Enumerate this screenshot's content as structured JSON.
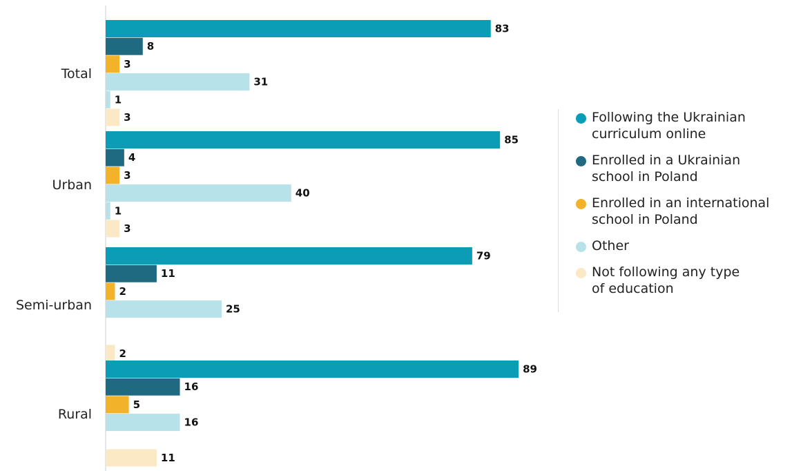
{
  "chart_data": {
    "type": "bar",
    "orientation": "horizontal",
    "categories": [
      "Total",
      "Urban",
      "Semi-urban",
      "Rural"
    ],
    "series": [
      {
        "name": "Following the Ukrainian curriculum online",
        "color": "#0a9db5",
        "values": [
          83,
          85,
          79,
          89
        ]
      },
      {
        "name": "Enrolled in a Ukrainian school in Poland",
        "color": "#1f6a80",
        "values": [
          8,
          4,
          11,
          16
        ]
      },
      {
        "name": "Enrolled in an international school in Poland",
        "color": "#f2b229",
        "values": [
          3,
          3,
          2,
          5
        ]
      },
      {
        "name": "Other",
        "color": "#b7e2e9",
        "values": [
          31,
          40,
          25,
          16
        ]
      },
      {
        "name": "Not following any type of education",
        "color": "#fbe9c6",
        "values": [
          3,
          3,
          2,
          11
        ]
      }
    ],
    "extra_rows": [
      {
        "category": "Total",
        "color": "#b7e2e9",
        "value": 1,
        "after_series": 3
      },
      {
        "category": "Urban",
        "color": "#b7e2e9",
        "value": 1,
        "after_series": 3
      },
      {
        "category": "Semi-urban",
        "color": "#b7e2e9",
        "value": null,
        "after_series": 3
      },
      {
        "category": "Rural",
        "color": "#b7e2e9",
        "value": null,
        "after_series": 3
      }
    ],
    "xlim": [
      0,
      100
    ],
    "grid": false,
    "legend_position": "right",
    "data_labels": true
  },
  "legend": {
    "items": [
      {
        "label_lines": [
          "Following the Ukrainian",
          "curriculum online"
        ],
        "color": "#0a9db5"
      },
      {
        "label_lines": [
          "Enrolled in a Ukrainian",
          "school in Poland"
        ],
        "color": "#1f6a80"
      },
      {
        "label_lines": [
          "Enrolled in an international",
          "school in Poland"
        ],
        "color": "#f2b229"
      },
      {
        "label_lines": [
          "Other"
        ],
        "color": "#b7e2e9"
      },
      {
        "label_lines": [
          "Not following any type",
          "of education"
        ],
        "color": "#fbe9c6"
      }
    ]
  }
}
